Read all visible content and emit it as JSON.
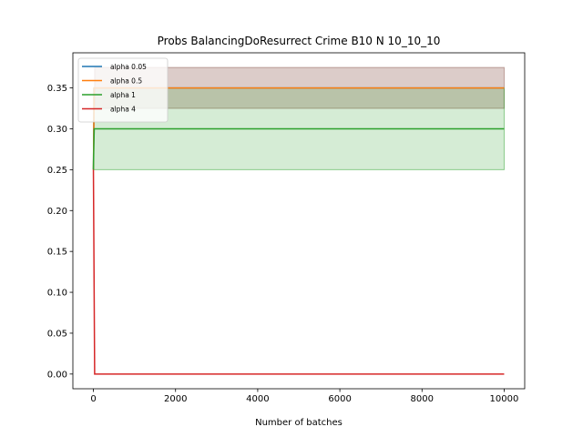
{
  "chart_data": {
    "type": "line",
    "title": "Probs BalancingDoResurrect Crime B10 N 10_10_10",
    "xlabel": "Number of batches",
    "ylabel": "",
    "xlim": [
      -500,
      10500
    ],
    "ylim": [
      -0.018,
      0.393
    ],
    "xticks": [
      0,
      2000,
      4000,
      6000,
      8000,
      10000
    ],
    "xtick_labels": [
      "0",
      "2000",
      "4000",
      "6000",
      "8000",
      "10000"
    ],
    "yticks": [
      0.0,
      0.05,
      0.1,
      0.15,
      0.2,
      0.25,
      0.3,
      0.35
    ],
    "ytick_labels": [
      "0.00",
      "0.05",
      "0.10",
      "0.15",
      "0.20",
      "0.25",
      "0.30",
      "0.35"
    ],
    "grid": false,
    "legend_placement": "top-left",
    "series": [
      {
        "name": "alpha 0.05",
        "color": "#1f77b4",
        "x": [
          0,
          10,
          20,
          30,
          10000
        ],
        "y": [
          0.25,
          0.3,
          0.35,
          0.35,
          0.35
        ],
        "band": null
      },
      {
        "name": "alpha 0.5",
        "color": "#ff7f0e",
        "x": [
          0,
          10,
          20,
          30,
          10000
        ],
        "y": [
          0.25,
          0.3,
          0.35,
          0.35,
          0.35
        ],
        "band": {
          "x": [
            30,
            10000
          ],
          "lower": [
            0.325,
            0.325
          ],
          "upper": [
            0.375,
            0.375
          ],
          "fill": "#8c564b",
          "opacity": 0.3
        }
      },
      {
        "name": "alpha 1",
        "color": "#2ca02c",
        "x": [
          0,
          10,
          20,
          10000
        ],
        "y": [
          0.25,
          0.28,
          0.3,
          0.3
        ],
        "band": {
          "x": [
            0,
            10000
          ],
          "lower": [
            0.25,
            0.25
          ],
          "upper": [
            0.35,
            0.35
          ],
          "fill": "#2ca02c",
          "opacity": 0.2
        }
      },
      {
        "name": "alpha 4",
        "color": "#d62728",
        "x": [
          0,
          30,
          60,
          10000
        ],
        "y": [
          0.25,
          0.0,
          0.0,
          0.0
        ],
        "band": null
      }
    ]
  }
}
